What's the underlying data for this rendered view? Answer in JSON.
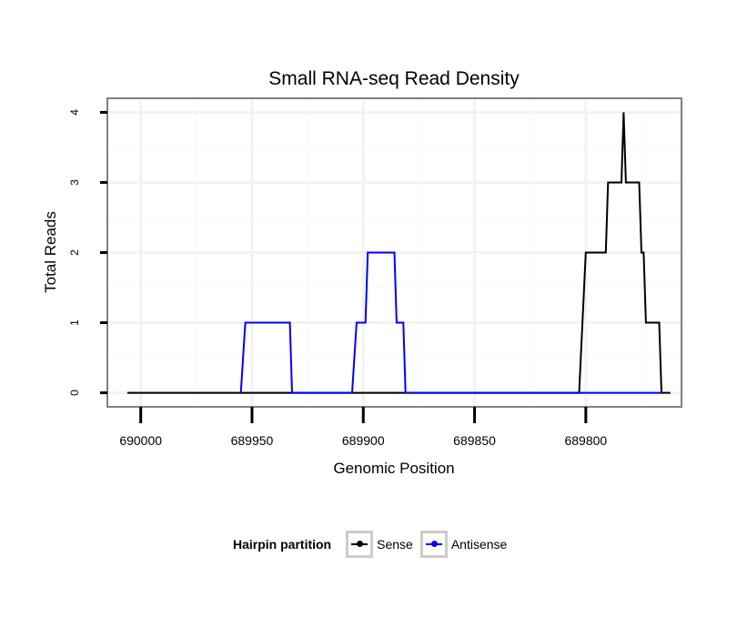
{
  "chart_data": {
    "type": "line",
    "title": "Small RNA-seq Read Density",
    "xlabel": "Genomic Position",
    "ylabel": "Total Reads",
    "x_reversed": true,
    "xlim": [
      690015,
      689757
    ],
    "ylim": [
      -0.2,
      4.2
    ],
    "x_ticks": [
      690000,
      689950,
      689900,
      689850,
      689800
    ],
    "x_tick_labels": [
      "690000",
      "689950",
      "689900",
      "689850",
      "689800"
    ],
    "y_ticks": [
      0,
      1,
      2,
      3,
      4
    ],
    "y_tick_labels": [
      "0",
      "1",
      "2",
      "3",
      "4"
    ],
    "grid": true,
    "legend_title": "Hairpin partition",
    "legend_position": "bottom",
    "series": [
      {
        "name": "Sense",
        "color": "#000000",
        "points": [
          [
            690006,
            0
          ],
          [
            689803,
            0
          ],
          [
            689800,
            2
          ],
          [
            689791,
            2
          ],
          [
            689790,
            3
          ],
          [
            689784,
            3
          ],
          [
            689783,
            4
          ],
          [
            689782,
            3
          ],
          [
            689776,
            3
          ],
          [
            689775,
            2
          ],
          [
            689774,
            2
          ],
          [
            689773,
            1
          ],
          [
            689767,
            1
          ],
          [
            689766,
            0
          ],
          [
            689762,
            0
          ]
        ]
      },
      {
        "name": "Antisense",
        "color": "#0000ff",
        "points": [
          [
            689955,
            0
          ],
          [
            689953,
            1
          ],
          [
            689933,
            1
          ],
          [
            689932,
            0
          ],
          [
            689905,
            0
          ],
          [
            689903,
            1
          ],
          [
            689899,
            1
          ],
          [
            689898,
            2
          ],
          [
            689886,
            2
          ],
          [
            689885,
            1
          ],
          [
            689882,
            1
          ],
          [
            689881,
            0
          ],
          [
            689803,
            0
          ],
          [
            689766,
            0
          ]
        ]
      }
    ]
  }
}
